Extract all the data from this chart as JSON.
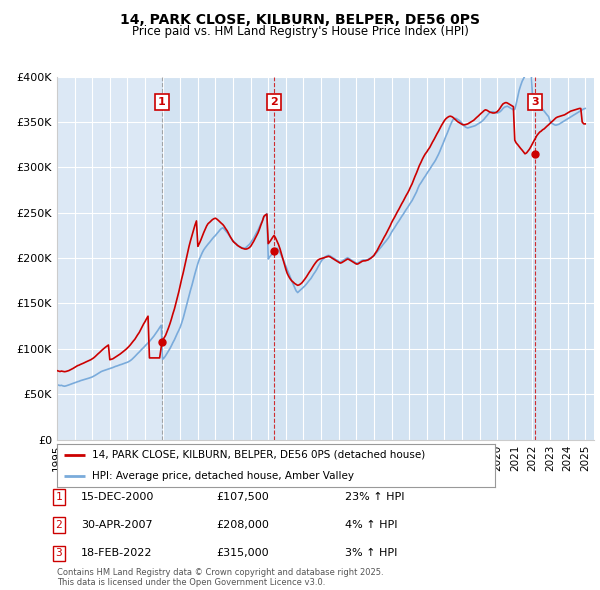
{
  "title": "14, PARK CLOSE, KILBURN, BELPER, DE56 0PS",
  "subtitle": "Price paid vs. HM Land Registry's House Price Index (HPI)",
  "ylim": [
    0,
    400000
  ],
  "yticks": [
    0,
    50000,
    100000,
    150000,
    200000,
    250000,
    300000,
    350000,
    400000
  ],
  "ytick_labels": [
    "£0",
    "£50K",
    "£100K",
    "£150K",
    "£200K",
    "£250K",
    "£300K",
    "£350K",
    "£400K"
  ],
  "xlim_start": 1995.0,
  "xlim_end": 2025.5,
  "background_color": "#ffffff",
  "plot_bg_color": "#dce8f5",
  "grid_color": "#ffffff",
  "sale_color": "#cc0000",
  "hpi_color": "#7aabdb",
  "shade_color": "#ccdff0",
  "legend_sale_label": "14, PARK CLOSE, KILBURN, BELPER, DE56 0PS (detached house)",
  "legend_hpi_label": "HPI: Average price, detached house, Amber Valley",
  "transactions": [
    {
      "num": 1,
      "date_str": "15-DEC-2000",
      "year": 2000.96,
      "price": 107500,
      "pct": "23%",
      "dir": "↑"
    },
    {
      "num": 2,
      "date_str": "30-APR-2007",
      "year": 2007.33,
      "price": 208000,
      "pct": "4%",
      "dir": "↑"
    },
    {
      "num": 3,
      "date_str": "18-FEB-2022",
      "year": 2022.13,
      "price": 315000,
      "pct": "3%",
      "dir": "↑"
    }
  ],
  "footnote": "Contains HM Land Registry data © Crown copyright and database right 2025.\nThis data is licensed under the Open Government Licence v3.0.",
  "hpi_years": [
    1995.0,
    1995.08,
    1995.17,
    1995.25,
    1995.33,
    1995.42,
    1995.5,
    1995.58,
    1995.67,
    1995.75,
    1995.83,
    1995.92,
    1996.0,
    1996.08,
    1996.17,
    1996.25,
    1996.33,
    1996.42,
    1996.5,
    1996.58,
    1996.67,
    1996.75,
    1996.83,
    1996.92,
    1997.0,
    1997.08,
    1997.17,
    1997.25,
    1997.33,
    1997.42,
    1997.5,
    1997.58,
    1997.67,
    1997.75,
    1997.83,
    1997.92,
    1998.0,
    1998.08,
    1998.17,
    1998.25,
    1998.33,
    1998.42,
    1998.5,
    1998.58,
    1998.67,
    1998.75,
    1998.83,
    1998.92,
    1999.0,
    1999.08,
    1999.17,
    1999.25,
    1999.33,
    1999.42,
    1999.5,
    1999.58,
    1999.67,
    1999.75,
    1999.83,
    1999.92,
    2000.0,
    2000.08,
    2000.17,
    2000.25,
    2000.33,
    2000.42,
    2000.5,
    2000.58,
    2000.67,
    2000.75,
    2000.83,
    2000.92,
    2001.0,
    2001.08,
    2001.17,
    2001.25,
    2001.33,
    2001.42,
    2001.5,
    2001.58,
    2001.67,
    2001.75,
    2001.83,
    2001.92,
    2002.0,
    2002.08,
    2002.17,
    2002.25,
    2002.33,
    2002.42,
    2002.5,
    2002.58,
    2002.67,
    2002.75,
    2002.83,
    2002.92,
    2003.0,
    2003.08,
    2003.17,
    2003.25,
    2003.33,
    2003.42,
    2003.5,
    2003.58,
    2003.67,
    2003.75,
    2003.83,
    2003.92,
    2004.0,
    2004.08,
    2004.17,
    2004.25,
    2004.33,
    2004.42,
    2004.5,
    2004.58,
    2004.67,
    2004.75,
    2004.83,
    2004.92,
    2005.0,
    2005.08,
    2005.17,
    2005.25,
    2005.33,
    2005.42,
    2005.5,
    2005.58,
    2005.67,
    2005.75,
    2005.83,
    2005.92,
    2006.0,
    2006.08,
    2006.17,
    2006.25,
    2006.33,
    2006.42,
    2006.5,
    2006.58,
    2006.67,
    2006.75,
    2006.83,
    2006.92,
    2007.0,
    2007.08,
    2007.17,
    2007.25,
    2007.33,
    2007.42,
    2007.5,
    2007.58,
    2007.67,
    2007.75,
    2007.83,
    2007.92,
    2008.0,
    2008.08,
    2008.17,
    2008.25,
    2008.33,
    2008.42,
    2008.5,
    2008.58,
    2008.67,
    2008.75,
    2008.83,
    2008.92,
    2009.0,
    2009.08,
    2009.17,
    2009.25,
    2009.33,
    2009.42,
    2009.5,
    2009.58,
    2009.67,
    2009.75,
    2009.83,
    2009.92,
    2010.0,
    2010.08,
    2010.17,
    2010.25,
    2010.33,
    2010.42,
    2010.5,
    2010.58,
    2010.67,
    2010.75,
    2010.83,
    2010.92,
    2011.0,
    2011.08,
    2011.17,
    2011.25,
    2011.33,
    2011.42,
    2011.5,
    2011.58,
    2011.67,
    2011.75,
    2011.83,
    2011.92,
    2012.0,
    2012.08,
    2012.17,
    2012.25,
    2012.33,
    2012.42,
    2012.5,
    2012.58,
    2012.67,
    2012.75,
    2012.83,
    2012.92,
    2013.0,
    2013.08,
    2013.17,
    2013.25,
    2013.33,
    2013.42,
    2013.5,
    2013.58,
    2013.67,
    2013.75,
    2013.83,
    2013.92,
    2014.0,
    2014.08,
    2014.17,
    2014.25,
    2014.33,
    2014.42,
    2014.5,
    2014.58,
    2014.67,
    2014.75,
    2014.83,
    2014.92,
    2015.0,
    2015.08,
    2015.17,
    2015.25,
    2015.33,
    2015.42,
    2015.5,
    2015.58,
    2015.67,
    2015.75,
    2015.83,
    2015.92,
    2016.0,
    2016.08,
    2016.17,
    2016.25,
    2016.33,
    2016.42,
    2016.5,
    2016.58,
    2016.67,
    2016.75,
    2016.83,
    2016.92,
    2017.0,
    2017.08,
    2017.17,
    2017.25,
    2017.33,
    2017.42,
    2017.5,
    2017.58,
    2017.67,
    2017.75,
    2017.83,
    2017.92,
    2018.0,
    2018.08,
    2018.17,
    2018.25,
    2018.33,
    2018.42,
    2018.5,
    2018.58,
    2018.67,
    2018.75,
    2018.83,
    2018.92,
    2019.0,
    2019.08,
    2019.17,
    2019.25,
    2019.33,
    2019.42,
    2019.5,
    2019.58,
    2019.67,
    2019.75,
    2019.83,
    2019.92,
    2020.0,
    2020.08,
    2020.17,
    2020.25,
    2020.33,
    2020.42,
    2020.5,
    2020.58,
    2020.67,
    2020.75,
    2020.83,
    2020.92,
    2021.0,
    2021.08,
    2021.17,
    2021.25,
    2021.33,
    2021.42,
    2021.5,
    2021.58,
    2021.67,
    2021.75,
    2021.83,
    2021.92,
    2022.0,
    2022.08,
    2022.17,
    2022.25,
    2022.33,
    2022.42,
    2022.5,
    2022.58,
    2022.67,
    2022.75,
    2022.83,
    2022.92,
    2023.0,
    2023.08,
    2023.17,
    2023.25,
    2023.33,
    2023.42,
    2023.5,
    2023.58,
    2023.67,
    2023.75,
    2023.83,
    2023.92,
    2024.0,
    2024.08,
    2024.17,
    2024.25,
    2024.33,
    2024.42,
    2024.5,
    2024.58,
    2024.67,
    2024.75,
    2024.83,
    2024.92,
    2025.0
  ],
  "hpi_vals": [
    60500,
    60000,
    59500,
    59800,
    59200,
    58800,
    59100,
    59600,
    60200,
    60800,
    61300,
    62000,
    62500,
    63100,
    63800,
    64200,
    64900,
    65400,
    65800,
    66200,
    66900,
    67300,
    67800,
    68400,
    69000,
    69800,
    70800,
    71800,
    72900,
    74000,
    74800,
    75500,
    76100,
    76700,
    77200,
    77800,
    78300,
    78900,
    79400,
    80100,
    80700,
    81200,
    81800,
    82400,
    82900,
    83500,
    84100,
    84700,
    85200,
    86000,
    87100,
    88300,
    89800,
    91500,
    93200,
    94800,
    96500,
    98200,
    99800,
    101500,
    103200,
    104800,
    106500,
    108100,
    110000,
    112000,
    114000,
    116200,
    118500,
    121000,
    123500,
    126000,
    88500,
    90000,
    92500,
    95000,
    97500,
    100500,
    103500,
    106800,
    110000,
    113500,
    117000,
    120500,
    124000,
    128500,
    134000,
    140000,
    146000,
    152500,
    158500,
    164500,
    170500,
    176500,
    182500,
    188500,
    194000,
    198500,
    202500,
    206000,
    209000,
    211500,
    213500,
    215500,
    217500,
    219500,
    221500,
    223500,
    225000,
    227000,
    229000,
    231000,
    232500,
    233500,
    232000,
    230000,
    228000,
    226000,
    223500,
    221000,
    219000,
    217500,
    216000,
    214500,
    213000,
    212000,
    211500,
    211000,
    211000,
    212000,
    213500,
    215000,
    217000,
    219500,
    222000,
    225000,
    228000,
    231000,
    234500,
    238000,
    241500,
    245500,
    247000,
    249000,
    199000,
    201500,
    203500,
    205500,
    207500,
    209500,
    211000,
    209000,
    206000,
    202500,
    199000,
    195000,
    191000,
    187000,
    183000,
    179000,
    175000,
    171000,
    167500,
    164000,
    162000,
    163500,
    165000,
    166500,
    168000,
    169500,
    171500,
    173500,
    175500,
    177500,
    180000,
    182500,
    185000,
    187500,
    190500,
    193500,
    196500,
    198500,
    200000,
    201500,
    202500,
    203000,
    202500,
    201500,
    200500,
    199500,
    198500,
    197500,
    196500,
    195500,
    196500,
    197500,
    198500,
    199500,
    200500,
    199500,
    198500,
    197500,
    196500,
    195500,
    194500,
    194500,
    195500,
    196500,
    197500,
    198000,
    198000,
    198000,
    198500,
    199500,
    200500,
    201500,
    202500,
    204500,
    206500,
    208500,
    210500,
    212500,
    214500,
    216500,
    218500,
    220500,
    222500,
    225500,
    228500,
    231000,
    233500,
    236000,
    238500,
    241000,
    243500,
    246000,
    248500,
    251000,
    253500,
    256000,
    258500,
    261000,
    263500,
    266500,
    269500,
    273000,
    277000,
    280500,
    283000,
    285500,
    288000,
    290500,
    293000,
    295500,
    298000,
    300500,
    303000,
    305500,
    308000,
    311000,
    314500,
    318000,
    322000,
    326000,
    330000,
    334000,
    338000,
    342000,
    346000,
    350000,
    353000,
    354000,
    354000,
    353000,
    352000,
    350500,
    348500,
    346500,
    345000,
    344000,
    343500,
    344000,
    344500,
    345000,
    345500,
    346000,
    347000,
    348000,
    349000,
    350000,
    351500,
    353000,
    355000,
    357000,
    359000,
    360500,
    361000,
    361500,
    361000,
    360500,
    360000,
    360500,
    361500,
    363000,
    365000,
    366500,
    367000,
    367500,
    366500,
    365500,
    364500,
    363500,
    364000,
    370000,
    378000,
    385000,
    390000,
    395000,
    398000,
    401000,
    403000,
    405000,
    407000,
    409000,
    381000,
    376000,
    374000,
    372000,
    370000,
    368000,
    366000,
    364000,
    362000,
    360000,
    358000,
    356000,
    351000,
    349000,
    348000,
    347000,
    346500,
    347000,
    347500,
    348500,
    349500,
    350500,
    351500,
    352500,
    353500,
    354500,
    355500,
    356500,
    357500,
    358500,
    359500,
    360500,
    361500,
    362500,
    363500,
    364500,
    365000
  ],
  "sale_years": [
    1995.0,
    1995.08,
    1995.17,
    1995.25,
    1995.33,
    1995.42,
    1995.5,
    1995.58,
    1995.67,
    1995.75,
    1995.83,
    1995.92,
    1996.0,
    1996.08,
    1996.17,
    1996.25,
    1996.33,
    1996.42,
    1996.5,
    1996.58,
    1996.67,
    1996.75,
    1996.83,
    1996.92,
    1997.0,
    1997.08,
    1997.17,
    1997.25,
    1997.33,
    1997.42,
    1997.5,
    1997.58,
    1997.67,
    1997.75,
    1997.83,
    1997.92,
    1998.0,
    1998.08,
    1998.17,
    1998.25,
    1998.33,
    1998.42,
    1998.5,
    1998.58,
    1998.67,
    1998.75,
    1998.83,
    1998.92,
    1999.0,
    1999.08,
    1999.17,
    1999.25,
    1999.33,
    1999.42,
    1999.5,
    1999.58,
    1999.67,
    1999.75,
    1999.83,
    1999.92,
    2000.0,
    2000.08,
    2000.17,
    2000.25,
    2000.33,
    2000.42,
    2000.5,
    2000.58,
    2000.67,
    2000.75,
    2000.83,
    2000.96,
    2001.0,
    2001.08,
    2001.17,
    2001.25,
    2001.33,
    2001.42,
    2001.5,
    2001.58,
    2001.67,
    2001.75,
    2001.83,
    2001.92,
    2002.0,
    2002.08,
    2002.17,
    2002.25,
    2002.33,
    2002.42,
    2002.5,
    2002.58,
    2002.67,
    2002.75,
    2002.83,
    2002.92,
    2003.0,
    2003.08,
    2003.17,
    2003.25,
    2003.33,
    2003.42,
    2003.5,
    2003.58,
    2003.67,
    2003.75,
    2003.83,
    2003.92,
    2004.0,
    2004.08,
    2004.17,
    2004.25,
    2004.33,
    2004.42,
    2004.5,
    2004.58,
    2004.67,
    2004.75,
    2004.83,
    2004.92,
    2005.0,
    2005.08,
    2005.17,
    2005.25,
    2005.33,
    2005.42,
    2005.5,
    2005.58,
    2005.67,
    2005.75,
    2005.83,
    2005.92,
    2006.0,
    2006.08,
    2006.17,
    2006.25,
    2006.33,
    2006.42,
    2006.5,
    2006.58,
    2006.67,
    2006.75,
    2006.83,
    2006.92,
    2007.0,
    2007.08,
    2007.17,
    2007.25,
    2007.33,
    2007.42,
    2007.5,
    2007.58,
    2007.67,
    2007.75,
    2007.83,
    2007.92,
    2008.0,
    2008.08,
    2008.17,
    2008.25,
    2008.33,
    2008.42,
    2008.5,
    2008.58,
    2008.67,
    2008.75,
    2008.83,
    2008.92,
    2009.0,
    2009.08,
    2009.17,
    2009.25,
    2009.33,
    2009.42,
    2009.5,
    2009.58,
    2009.67,
    2009.75,
    2009.83,
    2009.92,
    2010.0,
    2010.08,
    2010.17,
    2010.25,
    2010.33,
    2010.42,
    2010.5,
    2010.58,
    2010.67,
    2010.75,
    2010.83,
    2010.92,
    2011.0,
    2011.08,
    2011.17,
    2011.25,
    2011.33,
    2011.42,
    2011.5,
    2011.58,
    2011.67,
    2011.75,
    2011.83,
    2011.92,
    2012.0,
    2012.08,
    2012.17,
    2012.25,
    2012.33,
    2012.42,
    2012.5,
    2012.58,
    2012.67,
    2012.75,
    2012.83,
    2012.92,
    2013.0,
    2013.08,
    2013.17,
    2013.25,
    2013.33,
    2013.42,
    2013.5,
    2013.58,
    2013.67,
    2013.75,
    2013.83,
    2013.92,
    2014.0,
    2014.08,
    2014.17,
    2014.25,
    2014.33,
    2014.42,
    2014.5,
    2014.58,
    2014.67,
    2014.75,
    2014.83,
    2014.92,
    2015.0,
    2015.08,
    2015.17,
    2015.25,
    2015.33,
    2015.42,
    2015.5,
    2015.58,
    2015.67,
    2015.75,
    2015.83,
    2015.92,
    2016.0,
    2016.08,
    2016.17,
    2016.25,
    2016.33,
    2016.42,
    2016.5,
    2016.58,
    2016.67,
    2016.75,
    2016.83,
    2016.92,
    2017.0,
    2017.08,
    2017.17,
    2017.25,
    2017.33,
    2017.42,
    2017.5,
    2017.58,
    2017.67,
    2017.75,
    2017.83,
    2017.92,
    2018.0,
    2018.08,
    2018.17,
    2018.25,
    2018.33,
    2018.42,
    2018.5,
    2018.58,
    2018.67,
    2018.75,
    2018.83,
    2018.92,
    2019.0,
    2019.08,
    2019.17,
    2019.25,
    2019.33,
    2019.42,
    2019.5,
    2019.58,
    2019.67,
    2019.75,
    2019.83,
    2019.92,
    2020.0,
    2020.08,
    2020.17,
    2020.25,
    2020.33,
    2020.42,
    2020.5,
    2020.58,
    2020.67,
    2020.75,
    2020.83,
    2020.92,
    2021.0,
    2021.08,
    2021.17,
    2021.25,
    2021.33,
    2021.42,
    2021.5,
    2021.58,
    2021.67,
    2021.75,
    2021.83,
    2021.92,
    2022.0,
    2022.08,
    2022.17,
    2022.25,
    2022.33,
    2022.42,
    2022.5,
    2022.58,
    2022.67,
    2022.75,
    2022.83,
    2022.92,
    2023.0,
    2023.08,
    2023.17,
    2023.25,
    2023.33,
    2023.42,
    2023.5,
    2023.58,
    2023.67,
    2023.75,
    2023.83,
    2023.92,
    2024.0,
    2024.08,
    2024.17,
    2024.25,
    2024.33,
    2024.42,
    2024.5,
    2024.58,
    2024.67,
    2024.75,
    2024.83,
    2024.92,
    2025.0
  ],
  "sale_vals": [
    76000,
    75500,
    75000,
    75500,
    75200,
    74800,
    75000,
    75500,
    76000,
    76800,
    77500,
    78500,
    79500,
    80500,
    81500,
    82000,
    82800,
    83500,
    84200,
    85000,
    85800,
    86500,
    87200,
    88000,
    89000,
    90000,
    91500,
    93000,
    94500,
    96000,
    97500,
    99000,
    100500,
    101800,
    103000,
    104200,
    88000,
    88500,
    89000,
    90000,
    91000,
    92000,
    93000,
    94200,
    95500,
    96800,
    98000,
    99500,
    101000,
    102500,
    104500,
    106500,
    108500,
    110500,
    113000,
    115500,
    118000,
    121000,
    124000,
    127500,
    130000,
    133000,
    136000,
    90000,
    90000,
    90000,
    90000,
    90000,
    90000,
    90000,
    90000,
    107500,
    110000,
    112000,
    115000,
    119000,
    123000,
    128000,
    133000,
    138500,
    144000,
    150000,
    156000,
    163000,
    170000,
    177000,
    184000,
    191000,
    198500,
    206000,
    213000,
    219000,
    225000,
    230500,
    236000,
    241000,
    213000,
    216000,
    220000,
    224000,
    228000,
    232000,
    235500,
    238000,
    239500,
    241000,
    242500,
    243500,
    244000,
    243000,
    241500,
    240000,
    238500,
    237000,
    235000,
    232500,
    230000,
    227000,
    224000,
    221000,
    218500,
    217000,
    215500,
    214000,
    213000,
    212000,
    211000,
    210500,
    210000,
    210000,
    210500,
    211500,
    213000,
    215500,
    218500,
    221500,
    224500,
    228000,
    232000,
    236500,
    241000,
    246000,
    247500,
    248500,
    216000,
    218000,
    220500,
    223000,
    225000,
    222000,
    218500,
    215000,
    210000,
    204500,
    199000,
    193000,
    187500,
    183000,
    179500,
    177000,
    175000,
    173500,
    172000,
    171000,
    170000,
    170500,
    171500,
    173000,
    175000,
    177000,
    179500,
    182000,
    184500,
    187000,
    189500,
    192000,
    194500,
    196500,
    198000,
    199000,
    199500,
    200000,
    200500,
    201000,
    201500,
    202000,
    201500,
    200500,
    199500,
    198500,
    197500,
    196500,
    195500,
    194500,
    195000,
    196000,
    197000,
    198000,
    199000,
    198500,
    197500,
    196500,
    195500,
    194500,
    193500,
    193500,
    194500,
    195500,
    196500,
    197000,
    197000,
    197500,
    198000,
    199000,
    200000,
    201500,
    203000,
    205500,
    208000,
    211000,
    214000,
    217000,
    220000,
    223000,
    226000,
    229000,
    232000,
    235500,
    239000,
    242000,
    245000,
    248000,
    251000,
    254000,
    257000,
    260000,
    263000,
    266000,
    269000,
    272000,
    275000,
    278500,
    282000,
    286000,
    290000,
    294000,
    298000,
    302000,
    305500,
    309000,
    312000,
    315000,
    317000,
    319500,
    322000,
    325000,
    328000,
    331000,
    334000,
    337000,
    340000,
    343000,
    346000,
    349000,
    351500,
    353500,
    355000,
    356000,
    356500,
    356000,
    355000,
    353500,
    352000,
    350500,
    349500,
    348500,
    347500,
    347000,
    347000,
    347500,
    348000,
    349000,
    350000,
    351000,
    352000,
    353500,
    355000,
    356500,
    358000,
    359500,
    361000,
    362500,
    363500,
    363000,
    362000,
    361000,
    360500,
    360000,
    360000,
    360500,
    361500,
    363000,
    365500,
    368000,
    370000,
    371000,
    371500,
    371000,
    370000,
    369000,
    368000,
    367000,
    330000,
    327000,
    325000,
    323000,
    321000,
    319000,
    317000,
    315000,
    316000,
    318000,
    320000,
    323000,
    326000,
    329000,
    332000,
    335000,
    337000,
    339000,
    340000,
    341500,
    342500,
    344000,
    345500,
    347000,
    348500,
    350000,
    351500,
    353000,
    354500,
    355500,
    356000,
    356500,
    357000,
    357500,
    358000,
    359000,
    360000,
    361000,
    362000,
    362500,
    363000,
    363500,
    364000,
    364500,
    365000,
    365000,
    350000,
    348000,
    348000
  ]
}
